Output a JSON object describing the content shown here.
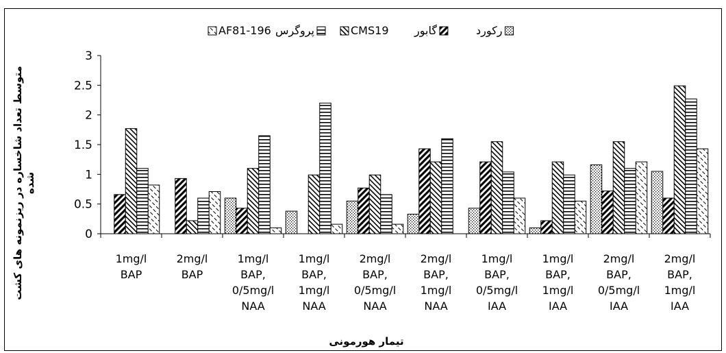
{
  "chart_data": {
    "type": "bar",
    "title": "",
    "xlabel": "تیمار هورمونی",
    "ylabel_lines": [
      "متوسط تعداد شاخساره در ریزنمونه های کشت",
      "شده"
    ],
    "ylim": [
      0,
      3
    ],
    "yticks": [
      "0",
      "0.5",
      "1",
      "1.5",
      "2",
      "2.5",
      "3"
    ],
    "grid": false,
    "legend_position": "top",
    "categories": [
      [
        "1mg/l",
        "BAP"
      ],
      [
        "2mg/l",
        "BAP"
      ],
      [
        "1mg/l",
        "BAP,",
        "0/5mg/l",
        "NAA"
      ],
      [
        "1mg/l",
        "BAP,",
        "1mg/l",
        "NAA"
      ],
      [
        "2mg/l",
        "BAP,",
        "0/5mg/l",
        "NAA"
      ],
      [
        "2mg/l",
        "BAP,",
        "1mg/l",
        "NAA"
      ],
      [
        "1mg/l",
        "BAP,",
        "0/5mg/l",
        "IAA"
      ],
      [
        "1mg/l",
        "BAP,",
        "1mg/l",
        "IAA"
      ],
      [
        "2mg/l",
        "BAP,",
        "0/5mg/l",
        "IAA"
      ],
      [
        "2mg/l",
        "BAP,",
        "1mg/l",
        "IAA"
      ]
    ],
    "series": [
      {
        "name": "رکورد",
        "pattern": "dots",
        "values": [
          0,
          0,
          0.6,
          0.38,
          0.55,
          0.33,
          0.43,
          0.1,
          1.16,
          1.05
        ]
      },
      {
        "name": "گابور",
        "pattern": "back-diagonal",
        "values": [
          0.66,
          0.93,
          0.43,
          0,
          0.77,
          1.43,
          1.21,
          0.22,
          0.72,
          0.6
        ]
      },
      {
        "name": "CMS19",
        "pattern": "diagonal",
        "values": [
          1.77,
          0.22,
          1.1,
          0.99,
          0.99,
          1.21,
          1.55,
          1.21,
          1.55,
          2.49
        ]
      },
      {
        "name": "پروگرس",
        "pattern": "horizontal",
        "values": [
          1.1,
          0.6,
          1.65,
          2.2,
          0.66,
          1.6,
          1.04,
          0.99,
          1.1,
          2.27
        ]
      },
      {
        "name": "AF81-196",
        "pattern": "dashed-diagonal",
        "values": [
          0.82,
          0.71,
          0.1,
          0.16,
          0.16,
          0,
          0.6,
          0.55,
          1.21,
          1.43
        ]
      }
    ]
  }
}
